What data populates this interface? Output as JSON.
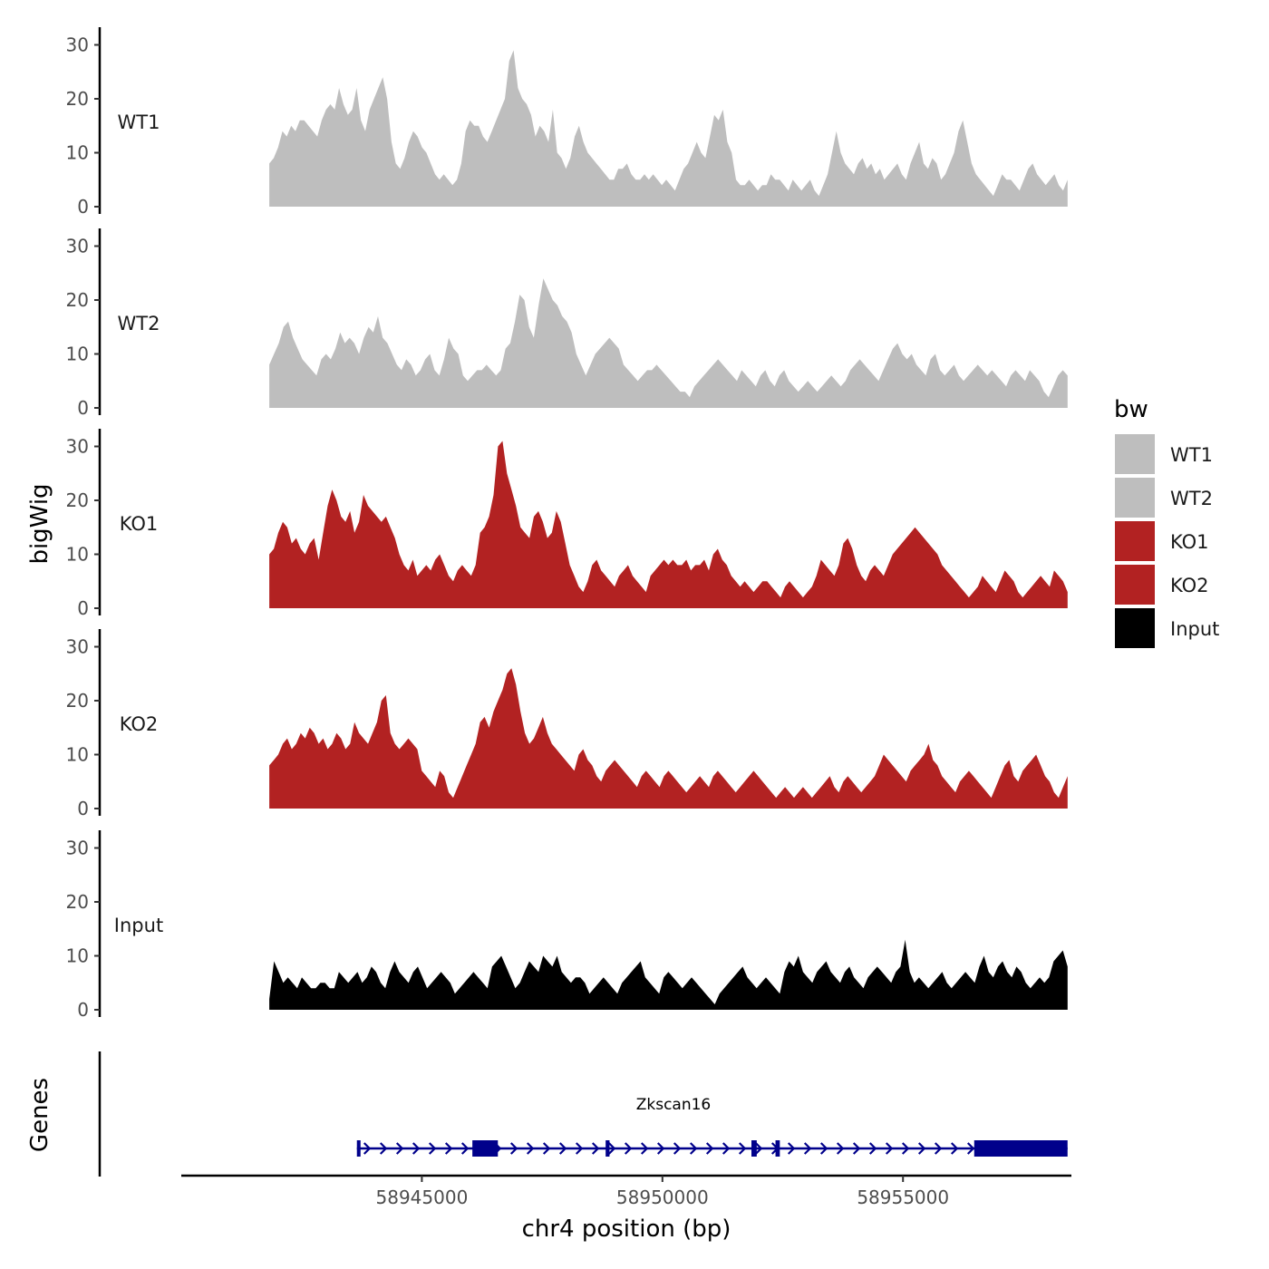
{
  "chart_data": {
    "type": "area",
    "ylabel": "bigWig",
    "xlabel": "chr4 position (bp)",
    "xlim": [
      58940000,
      58958500
    ],
    "ylim": [
      0,
      31
    ],
    "y_ticks": [
      0,
      10,
      20,
      30
    ],
    "x_ticks": [
      58945000,
      58950000,
      58955000
    ],
    "x_tick_labels": [
      "58945000",
      "58950000",
      "58955000"
    ],
    "x_start": 58941830,
    "x_end": 58958420,
    "legend": {
      "title": "bw",
      "position": "right",
      "entries": [
        {
          "label": "WT1",
          "color": "#bebebe"
        },
        {
          "label": "WT2",
          "color": "#bebebe"
        },
        {
          "label": "KO1",
          "color": "#b22222"
        },
        {
          "label": "KO2",
          "color": "#b22222"
        },
        {
          "label": "Input",
          "color": "#000000"
        }
      ]
    },
    "series": [
      {
        "name": "WT1",
        "color": "#bebebe",
        "values": [
          8,
          9,
          11,
          14,
          13,
          15,
          14,
          16,
          16,
          15,
          14,
          13,
          16,
          18,
          19,
          18,
          22,
          19,
          17,
          18,
          22,
          16,
          14,
          18,
          20,
          22,
          24,
          20,
          12,
          8,
          7,
          9,
          12,
          14,
          13,
          11,
          10,
          8,
          6,
          5,
          6,
          5,
          4,
          5,
          8,
          14,
          16,
          15,
          15,
          13,
          12,
          14,
          16,
          18,
          20,
          27,
          29,
          22,
          20,
          19,
          17,
          13,
          15,
          14,
          12,
          18,
          10,
          9,
          7,
          9,
          13,
          15,
          12,
          10,
          9,
          8,
          7,
          6,
          5,
          5,
          7,
          7,
          8,
          6,
          5,
          5,
          6,
          5,
          6,
          5,
          4,
          5,
          4,
          3,
          5,
          7,
          8,
          10,
          12,
          10,
          9,
          13,
          17,
          16,
          18,
          12,
          10,
          5,
          4,
          4,
          5,
          4,
          3,
          4,
          4,
          6,
          5,
          5,
          4,
          3,
          5,
          4,
          3,
          4,
          5,
          3,
          2,
          4,
          6,
          10,
          14,
          10,
          8,
          7,
          6,
          8,
          9,
          7,
          8,
          6,
          7,
          5,
          6,
          7,
          8,
          6,
          5,
          8,
          10,
          12,
          8,
          7,
          9,
          8,
          5,
          6,
          8,
          10,
          14,
          16,
          12,
          8,
          6,
          5,
          4,
          3,
          2,
          4,
          6,
          5,
          5,
          4,
          3,
          5,
          7,
          8,
          6,
          5,
          4,
          5,
          6,
          4,
          3,
          5
        ],
        "label": "WT1"
      },
      {
        "name": "WT2",
        "color": "#bebebe",
        "values": [
          8,
          10,
          12,
          15,
          16,
          13,
          11,
          9,
          8,
          7,
          6,
          9,
          10,
          9,
          11,
          14,
          12,
          13,
          12,
          10,
          13,
          15,
          14,
          17,
          13,
          12,
          10,
          8,
          7,
          9,
          8,
          6,
          7,
          9,
          10,
          7,
          6,
          9,
          13,
          11,
          10,
          6,
          5,
          6,
          7,
          7,
          8,
          7,
          6,
          7,
          11,
          12,
          16,
          21,
          20,
          15,
          13,
          19,
          24,
          22,
          20,
          19,
          17,
          16,
          14,
          10,
          8,
          6,
          8,
          10,
          11,
          12,
          13,
          12,
          11,
          8,
          7,
          6,
          5,
          6,
          7,
          7,
          8,
          7,
          6,
          5,
          4,
          3,
          3,
          2,
          4,
          5,
          6,
          7,
          8,
          9,
          8,
          7,
          6,
          5,
          7,
          6,
          5,
          4,
          6,
          7,
          5,
          4,
          6,
          7,
          5,
          4,
          3,
          4,
          5,
          4,
          3,
          4,
          5,
          6,
          5,
          4,
          5,
          7,
          8,
          9,
          8,
          7,
          6,
          5,
          7,
          9,
          11,
          12,
          10,
          9,
          10,
          8,
          7,
          6,
          9,
          10,
          7,
          6,
          7,
          8,
          6,
          5,
          6,
          7,
          8,
          7,
          6,
          7,
          6,
          5,
          4,
          6,
          7,
          6,
          5,
          7,
          6,
          5,
          3,
          2,
          4,
          6,
          7,
          6
        ],
        "label": "WT2"
      },
      {
        "name": "KO1",
        "color": "#b22222",
        "values": [
          10,
          11,
          14,
          16,
          15,
          12,
          13,
          11,
          10,
          12,
          13,
          9,
          14,
          19,
          22,
          20,
          17,
          16,
          18,
          14,
          16,
          21,
          19,
          18,
          17,
          16,
          17,
          15,
          13,
          10,
          8,
          7,
          9,
          6,
          7,
          8,
          7,
          9,
          10,
          8,
          6,
          5,
          7,
          8,
          7,
          6,
          8,
          14,
          15,
          17,
          21,
          30,
          31,
          25,
          22,
          19,
          15,
          14,
          13,
          17,
          18,
          16,
          13,
          14,
          18,
          16,
          12,
          8,
          6,
          4,
          3,
          5,
          8,
          9,
          7,
          6,
          5,
          4,
          6,
          7,
          8,
          6,
          5,
          4,
          3,
          6,
          7,
          8,
          9,
          8,
          9,
          8,
          8,
          9,
          7,
          8,
          8,
          9,
          7,
          10,
          11,
          9,
          8,
          6,
          5,
          4,
          5,
          4,
          3,
          4,
          5,
          5,
          4,
          3,
          2,
          4,
          5,
          4,
          3,
          2,
          3,
          4,
          6,
          9,
          8,
          7,
          6,
          8,
          12,
          13,
          11,
          8,
          6,
          5,
          7,
          8,
          7,
          6,
          8,
          10,
          11,
          12,
          13,
          14,
          15,
          14,
          13,
          12,
          11,
          10,
          8,
          7,
          6,
          5,
          4,
          3,
          2,
          3,
          4,
          6,
          5,
          4,
          3,
          5,
          7,
          6,
          5,
          3,
          2,
          3,
          4,
          5,
          6,
          5,
          4,
          7,
          6,
          5,
          3
        ],
        "label": "KO1"
      },
      {
        "name": "KO2",
        "color": "#b22222",
        "values": [
          8,
          9,
          10,
          12,
          13,
          11,
          12,
          14,
          13,
          15,
          14,
          12,
          13,
          11,
          12,
          14,
          13,
          11,
          12,
          16,
          14,
          13,
          12,
          14,
          16,
          20,
          21,
          14,
          12,
          11,
          12,
          13,
          12,
          11,
          7,
          6,
          5,
          4,
          7,
          6,
          3,
          2,
          4,
          6,
          8,
          10,
          12,
          16,
          17,
          15,
          18,
          20,
          22,
          25,
          26,
          23,
          18,
          14,
          12,
          13,
          15,
          17,
          14,
          12,
          11,
          10,
          9,
          8,
          7,
          10,
          11,
          9,
          8,
          6,
          5,
          7,
          8,
          9,
          8,
          7,
          6,
          5,
          4,
          6,
          7,
          6,
          5,
          4,
          6,
          7,
          6,
          5,
          4,
          3,
          4,
          5,
          6,
          5,
          4,
          6,
          7,
          6,
          5,
          4,
          3,
          4,
          5,
          6,
          7,
          6,
          5,
          4,
          3,
          2,
          3,
          4,
          3,
          2,
          3,
          4,
          3,
          2,
          3,
          4,
          5,
          6,
          4,
          3,
          5,
          6,
          5,
          4,
          3,
          4,
          5,
          6,
          8,
          10,
          9,
          8,
          7,
          6,
          5,
          7,
          8,
          9,
          10,
          12,
          9,
          8,
          6,
          5,
          4,
          3,
          5,
          6,
          7,
          6,
          5,
          4,
          3,
          2,
          4,
          6,
          8,
          9,
          6,
          5,
          7,
          8,
          9,
          10,
          8,
          6,
          5,
          3,
          2,
          4,
          6
        ],
        "label": "KO2"
      },
      {
        "name": "Input",
        "color": "#000000",
        "values": [
          2,
          9,
          7,
          5,
          6,
          5,
          4,
          6,
          5,
          4,
          4,
          5,
          5,
          4,
          4,
          7,
          6,
          5,
          6,
          7,
          5,
          6,
          8,
          7,
          5,
          4,
          7,
          9,
          7,
          6,
          5,
          7,
          8,
          6,
          4,
          5,
          6,
          7,
          6,
          5,
          3,
          4,
          5,
          6,
          7,
          6,
          5,
          4,
          8,
          9,
          10,
          8,
          6,
          4,
          5,
          7,
          9,
          8,
          7,
          10,
          9,
          8,
          10,
          7,
          6,
          5,
          6,
          6,
          5,
          3,
          4,
          5,
          6,
          5,
          4,
          3,
          5,
          6,
          7,
          8,
          9,
          6,
          5,
          4,
          3,
          6,
          7,
          6,
          5,
          4,
          5,
          6,
          5,
          4,
          3,
          2,
          1,
          3,
          4,
          5,
          6,
          7,
          8,
          6,
          5,
          4,
          5,
          6,
          5,
          4,
          3,
          7,
          9,
          8,
          10,
          7,
          6,
          5,
          7,
          8,
          9,
          7,
          6,
          5,
          7,
          8,
          6,
          5,
          4,
          6,
          7,
          8,
          7,
          6,
          5,
          7,
          8,
          13,
          7,
          5,
          6,
          5,
          4,
          5,
          6,
          7,
          5,
          4,
          5,
          6,
          7,
          6,
          5,
          8,
          10,
          7,
          6,
          8,
          9,
          7,
          6,
          8,
          7,
          5,
          4,
          5,
          6,
          5,
          6,
          9,
          10,
          11,
          8
        ],
        "label": "Input"
      }
    ],
    "gene_track": {
      "ylabel": "Genes",
      "gene_name": "Zkscan16",
      "strand": "+",
      "color": "#00008b",
      "tx_start": 58943650,
      "tx_end": 58958420,
      "exons": [
        [
          58943650,
          58943720
        ],
        [
          58946050,
          58946580
        ],
        [
          58948820,
          58948900
        ],
        [
          58951850,
          58951960
        ],
        [
          58952350,
          58952440
        ],
        [
          58956480,
          58958420
        ]
      ]
    }
  }
}
